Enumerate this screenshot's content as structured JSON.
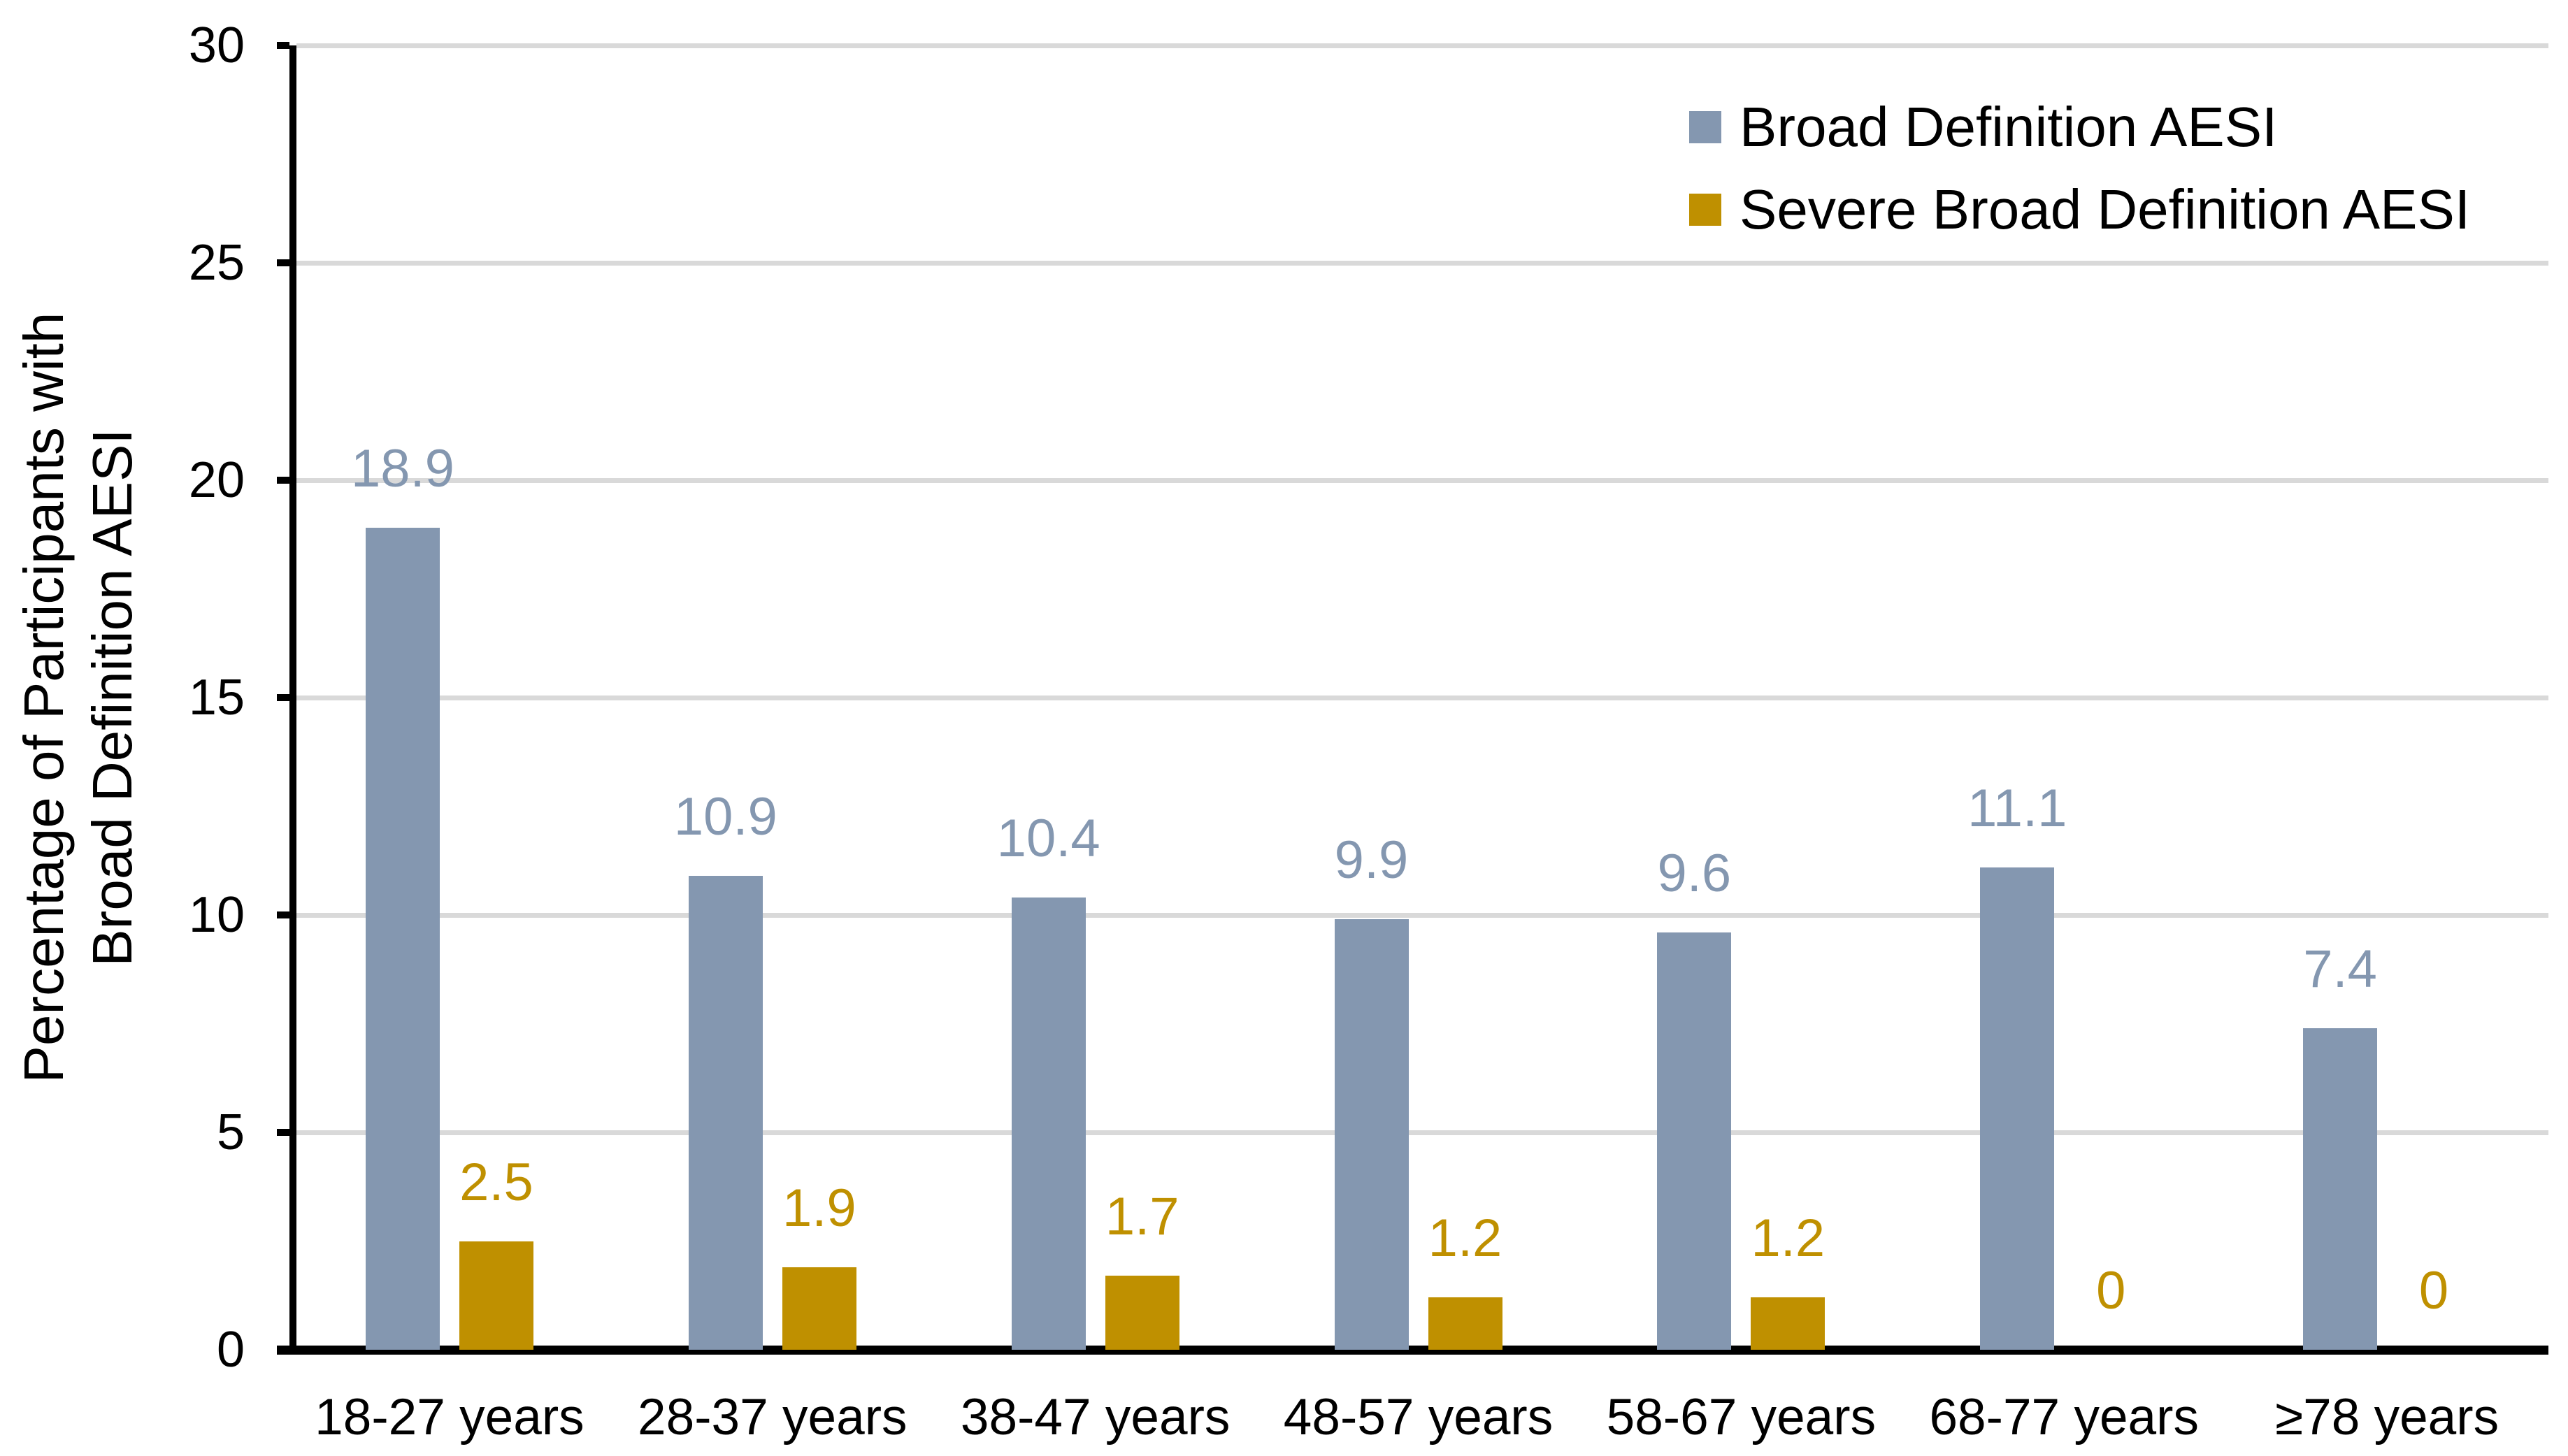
{
  "chart_data": {
    "type": "bar",
    "title": "",
    "categories": [
      "18-27 years",
      "28-37 years",
      "38-47 years",
      "48-57 years",
      "58-67 years",
      "68-77 years",
      "≥78 years"
    ],
    "series": [
      {
        "name": "Broad Definition AESI",
        "color": "#8497B0",
        "values": [
          18.9,
          10.9,
          10.4,
          9.9,
          9.6,
          11.1,
          7.4
        ],
        "labels": [
          "18.9",
          "10.9",
          "10.4",
          "9.9",
          "9.6",
          "11.1",
          "7.4"
        ]
      },
      {
        "name": "Severe Broad Definition AESI",
        "color": "#BF9000",
        "values": [
          2.5,
          1.9,
          1.7,
          1.2,
          1.2,
          0,
          0
        ],
        "labels": [
          "2.5",
          "1.9",
          "1.7",
          "1.2",
          "1.2",
          "0",
          "0"
        ]
      }
    ],
    "ylabel_line1": "Percentage of Participants with",
    "ylabel_line2": "Broad Definition AESI",
    "xlabel": "",
    "ylim": [
      0,
      30
    ],
    "yticks": [
      0,
      5,
      10,
      15,
      20,
      25,
      30
    ],
    "ytick_labels": [
      "0",
      "5",
      "10",
      "15",
      "20",
      "25",
      "30"
    ],
    "grid": true,
    "legend_position": "top-right",
    "colors": {
      "gridline": "#D9D9D9",
      "axis": "#000000",
      "background": "#FFFFFF"
    }
  }
}
